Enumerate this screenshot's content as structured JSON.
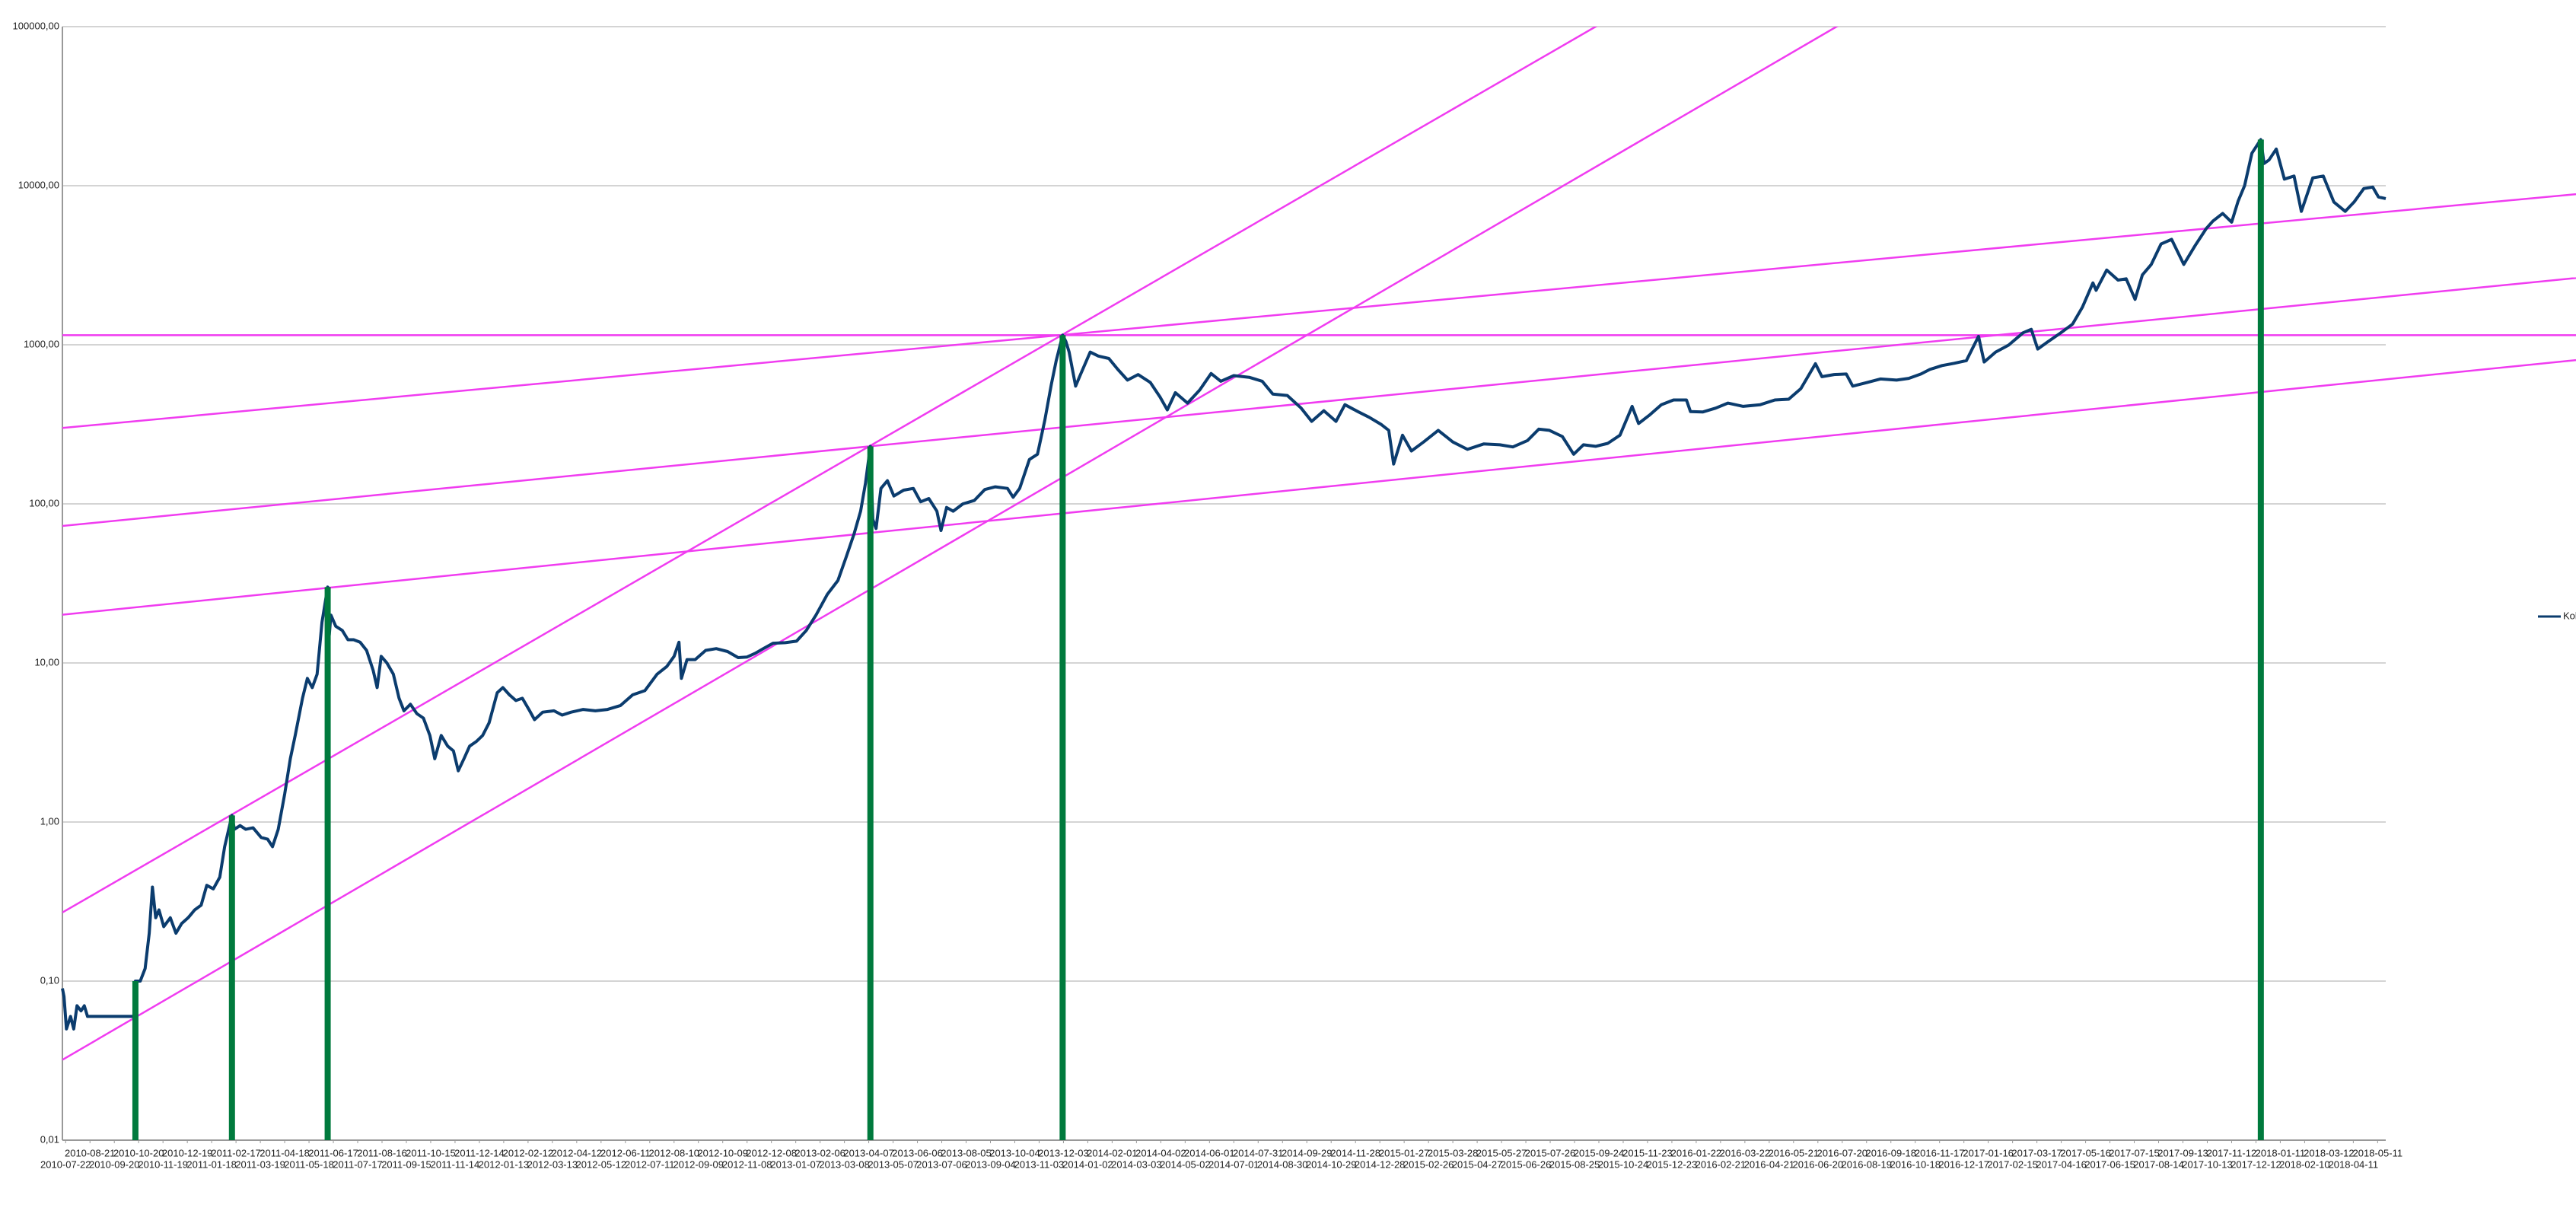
{
  "chart_data": {
    "type": "line",
    "log_scale": true,
    "grid": true,
    "legend": "right",
    "xlim": [
      "2010-07-18",
      "2018-05-21"
    ],
    "ylim": [
      0.01,
      100000
    ],
    "yticks": [
      {
        "value": 0.01,
        "label": "0,01"
      },
      {
        "value": 0.1,
        "label": "0,10"
      },
      {
        "value": 1,
        "label": "1,00"
      },
      {
        "value": 10,
        "label": "10,00"
      },
      {
        "value": 100,
        "label": "100,00"
      },
      {
        "value": 1000,
        "label": "1000,00"
      },
      {
        "value": 10000,
        "label": "10000,00"
      },
      {
        "value": 100000,
        "label": "100000,00"
      }
    ],
    "xticks": [
      "2010-07-22",
      "2010-08-21",
      "2010-09-20",
      "2010-10-20",
      "2010-11-19",
      "2010-12-19",
      "2011-01-18",
      "2011-02-17",
      "2011-03-19",
      "2011-04-18",
      "2011-05-18",
      "2011-06-17",
      "2011-07-17",
      "2011-08-16",
      "2011-09-15",
      "2011-10-15",
      "2011-11-14",
      "2011-12-14",
      "2012-01-13",
      "2012-02-12",
      "2012-03-13",
      "2012-04-12",
      "2012-05-12",
      "2012-06-11",
      "2012-07-11",
      "2012-08-10",
      "2012-09-09",
      "2012-10-09",
      "2012-11-08",
      "2012-12-08",
      "2013-01-07",
      "2013-02-06",
      "2013-03-08",
      "2013-04-07",
      "2013-05-07",
      "2013-06-06",
      "2013-07-06",
      "2013-08-05",
      "2013-09-04",
      "2013-10-04",
      "2013-11-03",
      "2013-12-03",
      "2014-01-02",
      "2014-02-01",
      "2014-03-03",
      "2014-04-02",
      "2014-05-02",
      "2014-06-01",
      "2014-07-01",
      "2014-07-31",
      "2014-08-30",
      "2014-09-29",
      "2014-10-29",
      "2014-11-28",
      "2014-12-28",
      "2015-01-27",
      "2015-02-26",
      "2015-03-28",
      "2015-04-27",
      "2015-05-27",
      "2015-06-26",
      "2015-07-26",
      "2015-08-25",
      "2015-09-24",
      "2015-10-24",
      "2015-11-23",
      "2015-12-23",
      "2016-01-22",
      "2016-02-21",
      "2016-03-22",
      "2016-04-21",
      "2016-05-21",
      "2016-06-20",
      "2016-07-20",
      "2016-08-19",
      "2016-09-18",
      "2016-10-18",
      "2016-11-17",
      "2016-12-17",
      "2017-01-16",
      "2017-02-15",
      "2017-03-17",
      "2017-04-16",
      "2017-05-16",
      "2017-06-15",
      "2017-07-15",
      "2017-08-14",
      "2017-09-13",
      "2017-10-13",
      "2017-11-12",
      "2017-12-12",
      "2018-01-11",
      "2018-02-10",
      "2018-03-12",
      "2018-04-11",
      "2018-05-11"
    ],
    "series": [
      {
        "name": "Kol",
        "color": "#0b3c6e",
        "x": [
          "2010-07-18",
          "2010-07-20",
          "2010-07-23",
          "2010-07-28",
          "2010-08-01",
          "2010-08-05",
          "2010-08-10",
          "2010-08-14",
          "2010-08-18",
          "2010-10-14",
          "2010-10-16",
          "2010-10-22",
          "2010-10-28",
          "2010-11-02",
          "2010-11-06",
          "2010-11-10",
          "2010-11-14",
          "2010-11-20",
          "2010-11-28",
          "2010-12-05",
          "2010-12-12",
          "2010-12-20",
          "2010-12-28",
          "2011-01-05",
          "2011-01-12",
          "2011-01-20",
          "2011-01-28",
          "2011-02-03",
          "2011-02-12",
          "2011-02-15",
          "2011-02-22",
          "2011-03-01",
          "2011-03-10",
          "2011-03-20",
          "2011-03-28",
          "2011-04-03",
          "2011-04-10",
          "2011-04-18",
          "2011-04-25",
          "2011-05-01",
          "2011-05-10",
          "2011-05-16",
          "2011-05-22",
          "2011-05-28",
          "2011-06-03",
          "2011-06-10",
          "2011-06-12",
          "2011-06-14",
          "2011-06-20",
          "2011-06-28",
          "2011-07-05",
          "2011-07-12",
          "2011-07-20",
          "2011-07-28",
          "2011-08-05",
          "2011-08-10",
          "2011-08-15",
          "2011-08-22",
          "2011-08-30",
          "2011-09-06",
          "2011-09-12",
          "2011-09-20",
          "2011-09-28",
          "2011-10-06",
          "2011-10-14",
          "2011-10-20",
          "2011-10-28",
          "2011-11-05",
          "2011-11-12",
          "2011-11-18",
          "2011-11-25",
          "2011-12-02",
          "2011-12-10",
          "2011-12-18",
          "2011-12-26",
          "2012-01-05",
          "2012-01-12",
          "2012-01-20",
          "2012-01-28",
          "2012-02-05",
          "2012-02-14",
          "2012-02-20",
          "2012-03-01",
          "2012-03-15",
          "2012-03-25",
          "2012-04-05",
          "2012-04-20",
          "2012-05-05",
          "2012-05-20",
          "2012-06-05",
          "2012-06-20",
          "2012-07-05",
          "2012-07-20",
          "2012-08-01",
          "2012-08-10",
          "2012-08-16",
          "2012-08-19",
          "2012-08-26",
          "2012-09-05",
          "2012-09-18",
          "2012-10-01",
          "2012-10-15",
          "2012-10-28",
          "2012-11-08",
          "2012-11-18",
          "2012-11-28",
          "2012-12-10",
          "2012-12-25",
          "2013-01-08",
          "2013-01-20",
          "2013-02-01",
          "2013-02-15",
          "2013-02-28",
          "2013-03-10",
          "2013-03-20",
          "2013-03-28",
          "2013-04-03",
          "2013-04-09",
          "2013-04-12",
          "2013-04-16",
          "2013-04-22",
          "2013-04-30",
          "2013-05-08",
          "2013-05-20",
          "2013-06-01",
          "2013-06-10",
          "2013-06-20",
          "2013-06-30",
          "2013-07-05",
          "2013-07-12",
          "2013-07-20",
          "2013-08-01",
          "2013-08-15",
          "2013-08-28",
          "2013-09-10",
          "2013-09-25",
          "2013-10-02",
          "2013-10-10",
          "2013-10-22",
          "2013-11-01",
          "2013-11-10",
          "2013-11-18",
          "2013-11-24",
          "2013-12-02",
          "2013-12-06",
          "2013-12-10",
          "2013-12-18",
          "2013-12-24",
          "2014-01-05",
          "2014-01-15",
          "2014-01-28",
          "2014-02-08",
          "2014-02-20",
          "2014-03-05",
          "2014-03-20",
          "2014-04-01",
          "2014-04-10",
          "2014-04-20",
          "2014-05-05",
          "2014-05-20",
          "2014-06-03",
          "2014-06-15",
          "2014-07-01",
          "2014-07-20",
          "2014-08-05",
          "2014-08-18",
          "2014-09-05",
          "2014-09-22",
          "2014-10-05",
          "2014-10-20",
          "2014-11-04",
          "2014-11-15",
          "2014-12-01",
          "2014-12-15",
          "2014-12-30",
          "2015-01-08",
          "2015-01-14",
          "2015-01-25",
          "2015-02-05",
          "2015-02-20",
          "2015-03-10",
          "2015-03-28",
          "2015-04-15",
          "2015-05-05",
          "2015-05-25",
          "2015-06-10",
          "2015-06-28",
          "2015-07-12",
          "2015-07-25",
          "2015-08-10",
          "2015-08-24",
          "2015-09-05",
          "2015-09-20",
          "2015-10-05",
          "2015-10-20",
          "2015-11-04",
          "2015-11-12",
          "2015-11-25",
          "2015-12-10",
          "2015-12-25",
          "2016-01-10",
          "2016-01-15",
          "2016-01-30",
          "2016-02-15",
          "2016-03-01",
          "2016-03-20",
          "2016-04-10",
          "2016-04-28",
          "2016-05-15",
          "2016-05-30",
          "2016-06-17",
          "2016-06-25",
          "2016-07-10",
          "2016-07-25",
          "2016-08-02",
          "2016-08-20",
          "2016-09-05",
          "2016-09-25",
          "2016-10-10",
          "2016-10-25",
          "2016-11-05",
          "2016-11-20",
          "2016-12-05",
          "2016-12-20",
          "2017-01-04",
          "2017-01-11",
          "2017-01-25",
          "2017-02-10",
          "2017-02-28",
          "2017-03-10",
          "2017-03-18",
          "2017-03-30",
          "2017-04-15",
          "2017-04-30",
          "2017-05-12",
          "2017-05-25",
          "2017-05-29",
          "2017-06-11",
          "2017-06-25",
          "2017-07-05",
          "2017-07-16",
          "2017-07-25",
          "2017-08-05",
          "2017-08-17",
          "2017-08-30",
          "2017-09-14",
          "2017-09-28",
          "2017-10-12",
          "2017-10-20",
          "2017-11-01",
          "2017-11-12",
          "2017-11-20",
          "2017-11-28",
          "2017-12-07",
          "2017-12-18",
          "2017-12-22",
          "2017-12-28",
          "2018-01-06",
          "2018-01-16",
          "2018-01-28",
          "2018-02-06",
          "2018-02-20",
          "2018-03-05",
          "2018-03-18",
          "2018-04-01",
          "2018-04-12",
          "2018-04-24",
          "2018-05-05",
          "2018-05-12",
          "2018-05-21"
        ],
        "values": [
          0.09,
          0.08,
          0.05,
          0.06,
          0.05,
          0.07,
          0.065,
          0.07,
          0.06,
          0.06,
          0.1,
          0.1,
          0.12,
          0.2,
          0.39,
          0.25,
          0.28,
          0.22,
          0.25,
          0.2,
          0.23,
          0.25,
          0.28,
          0.3,
          0.4,
          0.38,
          0.45,
          0.7,
          1.1,
          0.9,
          0.95,
          0.9,
          0.92,
          0.8,
          0.78,
          0.7,
          0.9,
          1.5,
          2.5,
          3.5,
          6,
          8,
          7,
          8.5,
          18,
          30,
          15,
          20,
          17,
          16,
          14,
          14,
          13.5,
          12,
          9,
          7,
          11,
          10,
          8.5,
          6,
          5,
          5.5,
          4.8,
          4.5,
          3.5,
          2.5,
          3.5,
          3,
          2.8,
          2.1,
          2.5,
          3,
          3.2,
          3.5,
          4.2,
          6.5,
          7,
          6.3,
          5.8,
          6,
          5,
          4.4,
          4.9,
          5,
          4.7,
          4.9,
          5.1,
          5,
          5.1,
          5.4,
          6.3,
          6.7,
          8.5,
          9.5,
          11,
          13.5,
          8,
          10.5,
          10.5,
          12,
          12.3,
          11.8,
          10.8,
          10.9,
          11.5,
          12.3,
          13.3,
          13.4,
          13.7,
          16,
          20,
          27,
          33,
          46,
          65,
          90,
          135,
          230,
          80,
          70,
          125,
          140,
          112,
          122,
          125,
          103,
          108,
          90,
          68,
          95,
          90,
          100,
          105,
          123,
          128,
          125,
          110,
          125,
          190,
          205,
          335,
          560,
          790,
          1150,
          1050,
          900,
          550,
          650,
          900,
          850,
          820,
          700,
          600,
          650,
          580,
          470,
          390,
          500,
          430,
          520,
          660,
          590,
          640,
          625,
          590,
          490,
          480,
          400,
          330,
          385,
          330,
          420,
          380,
          350,
          315,
          290,
          178,
          270,
          215,
          245,
          290,
          245,
          220,
          238,
          235,
          228,
          250,
          295,
          290,
          265,
          205,
          235,
          230,
          240,
          270,
          410,
          320,
          360,
          420,
          450,
          450,
          380,
          378,
          400,
          430,
          410,
          420,
          450,
          455,
          530,
          760,
          630,
          650,
          655,
          550,
          580,
          610,
          600,
          615,
          655,
          700,
          740,
          765,
          795,
          1130,
          780,
          900,
          995,
          1190,
          1250,
          940,
          1040,
          1185,
          1350,
          1720,
          2450,
          2200,
          2950,
          2550,
          2600,
          1930,
          2750,
          3200,
          4300,
          4600,
          3200,
          4200,
          5400,
          6000,
          6700,
          5900,
          8000,
          10000,
          16000,
          19500,
          13800,
          14500,
          17000,
          11000,
          11500,
          6900,
          11200,
          11500,
          7900,
          6900,
          7900,
          9600,
          9800,
          8500,
          8300
        ]
      }
    ],
    "peaks": {
      "color": "#007a3d",
      "x": [
        "2010-10-16",
        "2011-02-12",
        "2011-06-10",
        "2013-04-09",
        "2013-12-02",
        "2017-12-18"
      ],
      "values": [
        0.1,
        1.1,
        30,
        230,
        1150,
        19500
      ]
    },
    "trend_lines": {
      "color": "#f03cf0",
      "lines": [
        {
          "x": [
            "2010-07-18",
            "2019-01-11"
          ],
          "y": [
            1150,
            1150
          ]
        },
        {
          "x": [
            "2010-07-18",
            "2015-09-20"
          ],
          "y": [
            0.27,
            100000
          ]
        },
        {
          "x": [
            "2010-07-18",
            "2016-07-13"
          ],
          "y": [
            0.032,
            100000
          ]
        },
        {
          "x": [
            "2010-07-18",
            "2019-01-11"
          ],
          "y": [
            300,
            8850
          ]
        },
        {
          "x": [
            "2010-07-18",
            "2019-01-11"
          ],
          "y": [
            72.6,
            2630
          ]
        },
        {
          "x": [
            "2010-07-18",
            "2019-01-11"
          ],
          "y": [
            20.1,
            802
          ]
        }
      ]
    }
  }
}
